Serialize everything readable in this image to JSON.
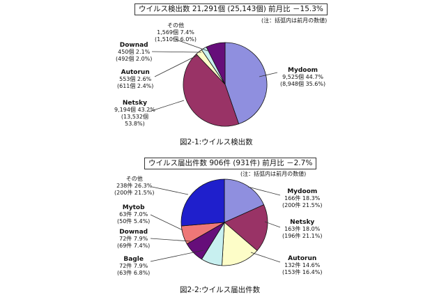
{
  "chart_data": [
    {
      "type": "pie",
      "title": "ウイルス検出数 21,291個 (25,143個) 前月比 －15.3%",
      "note": "(注：括弧内は前月の数値)",
      "caption": "図2-1:ウイルス検出数",
      "slices": [
        {
          "name": "Mydoom",
          "value": 44.7,
          "line1": "9,525個 44.7%",
          "line2": "(8,948個 35.6%)",
          "color": "#8f8fdf"
        },
        {
          "name": "Netsky",
          "value": 43.2,
          "line1": "9,194個 43.2%",
          "line2": "(13,532個",
          "line3": "53.8%)",
          "color": "#993366"
        },
        {
          "name": "Autorun",
          "value": 2.6,
          "line1": "553個 2.6%",
          "line2": "(611個 2.4%)",
          "color": "#fdfdc8"
        },
        {
          "name": "Downad",
          "value": 2.1,
          "line1": "450個 2.1%",
          "line2": "(492個 2.0%)",
          "color": "#c8f0f0"
        },
        {
          "name": "その他",
          "value": 7.4,
          "line1": "1,569個 7.4%",
          "line2": "(1,510個 6.0%)",
          "color": "#660e7a"
        }
      ]
    },
    {
      "type": "pie",
      "title": "ウイルス届出件数 906件 (931件) 前月比 －2.7%",
      "note": "(注：括弧内は前月の数値)",
      "caption": "図2-2:ウイルス届出件数",
      "slices": [
        {
          "name": "Mydoom",
          "value": 18.3,
          "line1": "166件 18.3%",
          "line2": "(200件 21.5%)",
          "color": "#8f8fdf"
        },
        {
          "name": "Netsky",
          "value": 18.0,
          "line1": "163件 18.0%",
          "line2": "(196件 21.1%)",
          "color": "#993366"
        },
        {
          "name": "Autorun",
          "value": 14.6,
          "line1": "132件 14.6%",
          "line2": "(153件 16.4%)",
          "color": "#fdfdc8"
        },
        {
          "name": "Bagle",
          "value": 7.9,
          "line1": "72件 7.9%",
          "line2": "(63件 6.8%)",
          "color": "#c8f0f0"
        },
        {
          "name": "Downad",
          "value": 7.9,
          "line1": "72件 7.9%",
          "line2": "(69件 7.4%)",
          "color": "#660e7a"
        },
        {
          "name": "Mytob",
          "value": 7.0,
          "line1": "63件 7.0%",
          "line2": "(50件 5.4%)",
          "color": "#ee7777"
        },
        {
          "name": "その他",
          "value": 26.3,
          "line1": "238件 26.3%",
          "line2": "(200件 21.5%)",
          "color": "#1f1fcc"
        }
      ]
    }
  ]
}
